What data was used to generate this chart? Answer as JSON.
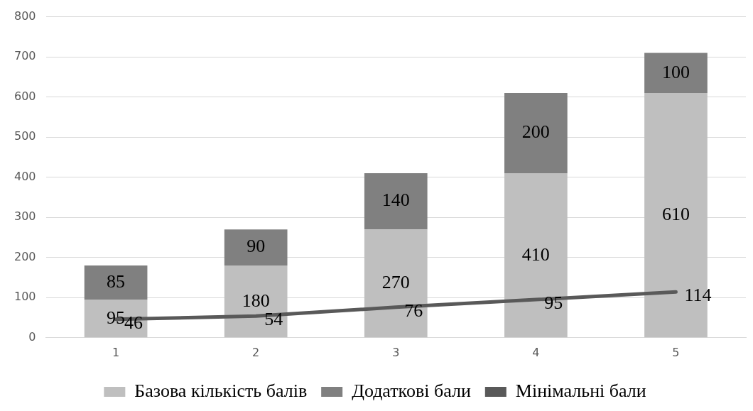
{
  "chart_data": {
    "type": "bar",
    "stacked": true,
    "categories": [
      "1",
      "2",
      "3",
      "4",
      "5"
    ],
    "series": [
      {
        "name": "Базова кількість балів",
        "color": "#bfbfbf",
        "values": [
          95,
          180,
          270,
          410,
          610
        ]
      },
      {
        "name": "Додаткові бали",
        "color": "#808080",
        "values": [
          85,
          90,
          140,
          200,
          100
        ]
      },
      {
        "name": "Мінімальні бали",
        "type": "line",
        "color": "#595959",
        "values": [
          46,
          54,
          76,
          95,
          114
        ]
      }
    ],
    "ylim": [
      0,
      800
    ],
    "yticks": [
      0,
      100,
      200,
      300,
      400,
      500,
      600,
      700,
      800
    ],
    "grid": "y",
    "legend": "bottom",
    "data_labels": true,
    "marker": "none",
    "line_style": "solid"
  }
}
